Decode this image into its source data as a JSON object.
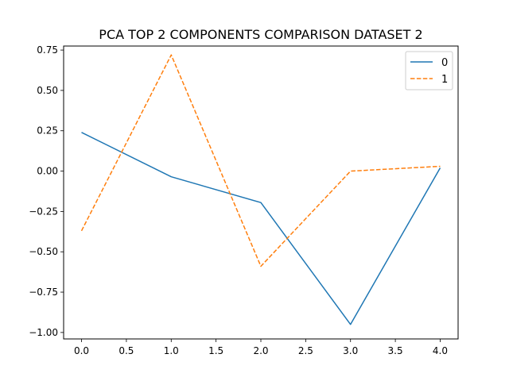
{
  "chart_data": {
    "type": "line",
    "title": "PCA TOP 2 COMPONENTS COMPARISON DATASET 2",
    "xlabel": "",
    "ylabel": "",
    "x": [
      0,
      1,
      2,
      3,
      4
    ],
    "series": [
      {
        "name": "0",
        "values": [
          0.24,
          -0.035,
          -0.195,
          -0.95,
          0.02
        ],
        "color": "#1f77b4",
        "style": "solid"
      },
      {
        "name": "1",
        "values": [
          -0.37,
          0.72,
          -0.59,
          0.0,
          0.03
        ],
        "color": "#ff7f0e",
        "style": "dashed"
      }
    ],
    "xlim": [
      -0.2,
      4.2
    ],
    "ylim": [
      -1.04,
      0.775
    ],
    "xticks": [
      0.0,
      0.5,
      1.0,
      1.5,
      2.0,
      2.5,
      3.0,
      3.5,
      4.0
    ],
    "xtick_labels": [
      "0.0",
      "0.5",
      "1.0",
      "1.5",
      "2.0",
      "2.5",
      "3.0",
      "3.5",
      "4.0"
    ],
    "yticks": [
      -1.0,
      -0.75,
      -0.5,
      -0.25,
      0.0,
      0.25,
      0.5,
      0.75
    ],
    "ytick_labels": [
      "−1.00",
      "−0.75",
      "−0.50",
      "−0.25",
      "0.00",
      "0.25",
      "0.50",
      "0.75"
    ],
    "grid": false,
    "legend_position": "top-right"
  }
}
